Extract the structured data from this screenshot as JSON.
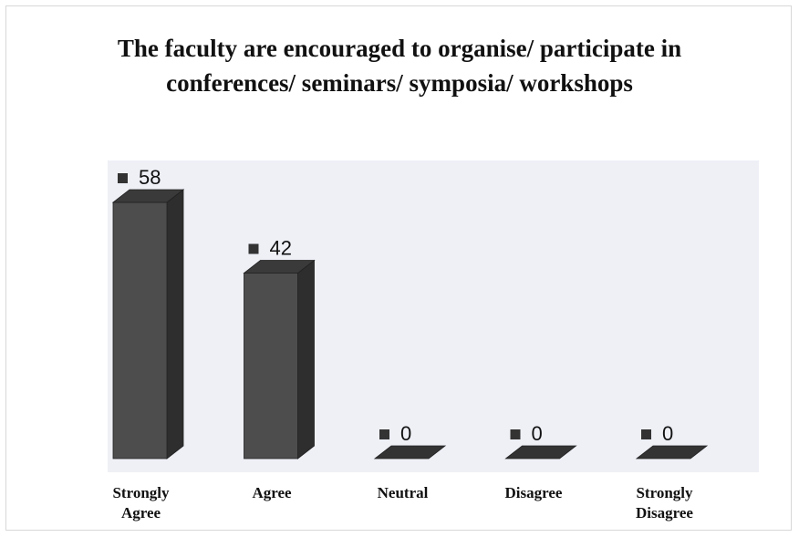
{
  "chart_data": {
    "type": "bar3d",
    "title": "The faculty are encouraged to organise/ participate in conferences/ seminars/ symposia/ workshops",
    "categories": [
      "Strongly Agree",
      "Agree",
      "Neutral",
      "Disagree",
      "Strongly Disagree"
    ],
    "values": [
      58,
      42,
      0,
      0,
      0
    ],
    "color": "#4d4d4d"
  }
}
